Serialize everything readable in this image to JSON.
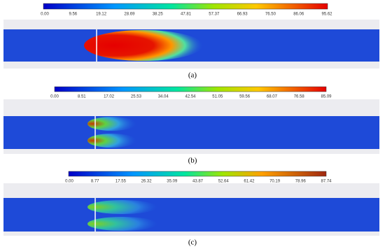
{
  "panels": [
    {
      "ticks": [
        "0.00",
        "9.56",
        "19.12",
        "28.69",
        "38.25",
        "47.81",
        "57.37",
        "66.93",
        "76.50",
        "86.06",
        "95.62"
      ],
      "caption": "(a)"
    },
    {
      "ticks": [
        "0.00",
        "8.51",
        "17.02",
        "25.53",
        "34.04",
        "42.54",
        "51.05",
        "59.56",
        "68.07",
        "76.58",
        "85.09"
      ],
      "caption": "(b)"
    },
    {
      "ticks": [
        "0.00",
        "8.77",
        "17.55",
        "26.32",
        "35.09",
        "43.87",
        "52.64",
        "61.42",
        "70.19",
        "78.96",
        "87.74"
      ],
      "caption": "(c)"
    }
  ]
}
